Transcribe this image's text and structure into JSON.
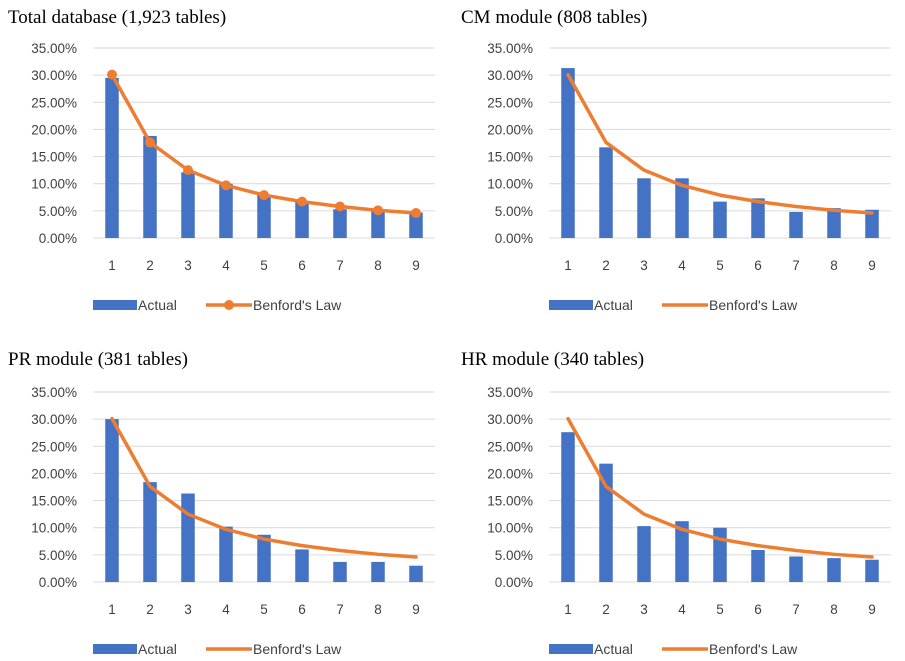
{
  "colors": {
    "actual": "#4472C4",
    "benford": "#ED7D31",
    "grid": "#D9D9D9",
    "tick_text": "#404040"
  },
  "chart_data": [
    {
      "type": "bar",
      "title": "Total database (1,923 tables)",
      "categories": [
        "1",
        "2",
        "3",
        "4",
        "5",
        "6",
        "7",
        "8",
        "9"
      ],
      "ylim": [
        0,
        35
      ],
      "y_ticks": [
        "0.00%",
        "5.00%",
        "10.00%",
        "15.00%",
        "20.00%",
        "25.00%",
        "30.00%",
        "35.00%"
      ],
      "grid": true,
      "legend_placement": "bottom",
      "series": [
        {
          "name": "Actual",
          "type": "bar",
          "values": [
            29.5,
            18.8,
            12.1,
            10.0,
            8.0,
            6.7,
            5.3,
            5.0,
            4.7
          ]
        },
        {
          "name": "Benford's Law",
          "type": "line",
          "markers": true,
          "values": [
            30.1,
            17.6,
            12.5,
            9.7,
            7.9,
            6.7,
            5.8,
            5.1,
            4.6
          ]
        }
      ]
    },
    {
      "type": "bar",
      "title": "CM module (808 tables)",
      "categories": [
        "1",
        "2",
        "3",
        "4",
        "5",
        "6",
        "7",
        "8",
        "9"
      ],
      "ylim": [
        0,
        35
      ],
      "y_ticks": [
        "0.00%",
        "5.00%",
        "10.00%",
        "15.00%",
        "20.00%",
        "25.00%",
        "30.00%",
        "35.00%"
      ],
      "grid": true,
      "legend_placement": "bottom",
      "series": [
        {
          "name": "Actual",
          "type": "bar",
          "values": [
            31.3,
            16.7,
            11.0,
            11.0,
            6.7,
            7.3,
            4.8,
            5.5,
            5.2
          ]
        },
        {
          "name": "Benford's Law",
          "type": "line",
          "markers": false,
          "values": [
            30.1,
            17.6,
            12.5,
            9.7,
            7.9,
            6.7,
            5.8,
            5.1,
            4.6
          ]
        }
      ]
    },
    {
      "type": "bar",
      "title": "PR module (381 tables)",
      "categories": [
        "1",
        "2",
        "3",
        "4",
        "5",
        "6",
        "7",
        "8",
        "9"
      ],
      "ylim": [
        0,
        35
      ],
      "y_ticks": [
        "0.00%",
        "5.00%",
        "10.00%",
        "15.00%",
        "20.00%",
        "25.00%",
        "30.00%",
        "35.00%"
      ],
      "grid": true,
      "legend_placement": "bottom",
      "series": [
        {
          "name": "Actual",
          "type": "bar",
          "values": [
            30.0,
            18.4,
            16.3,
            10.2,
            8.7,
            6.0,
            3.7,
            3.7,
            3.0
          ]
        },
        {
          "name": "Benford's Law",
          "type": "line",
          "markers": false,
          "values": [
            30.1,
            17.6,
            12.5,
            9.7,
            7.9,
            6.7,
            5.8,
            5.1,
            4.6
          ]
        }
      ]
    },
    {
      "type": "bar",
      "title": "HR module (340 tables)",
      "categories": [
        "1",
        "2",
        "3",
        "4",
        "5",
        "6",
        "7",
        "8",
        "9"
      ],
      "ylim": [
        0,
        35
      ],
      "y_ticks": [
        "0.00%",
        "5.00%",
        "10.00%",
        "15.00%",
        "20.00%",
        "25.00%",
        "30.00%",
        "35.00%"
      ],
      "grid": true,
      "legend_placement": "bottom",
      "series": [
        {
          "name": "Actual",
          "type": "bar",
          "values": [
            27.6,
            21.8,
            10.3,
            11.2,
            10.0,
            5.9,
            4.7,
            4.4,
            4.1
          ]
        },
        {
          "name": "Benford's Law",
          "type": "line",
          "markers": false,
          "values": [
            30.1,
            17.6,
            12.5,
            9.7,
            7.9,
            6.7,
            5.8,
            5.1,
            4.6
          ]
        }
      ]
    }
  ]
}
